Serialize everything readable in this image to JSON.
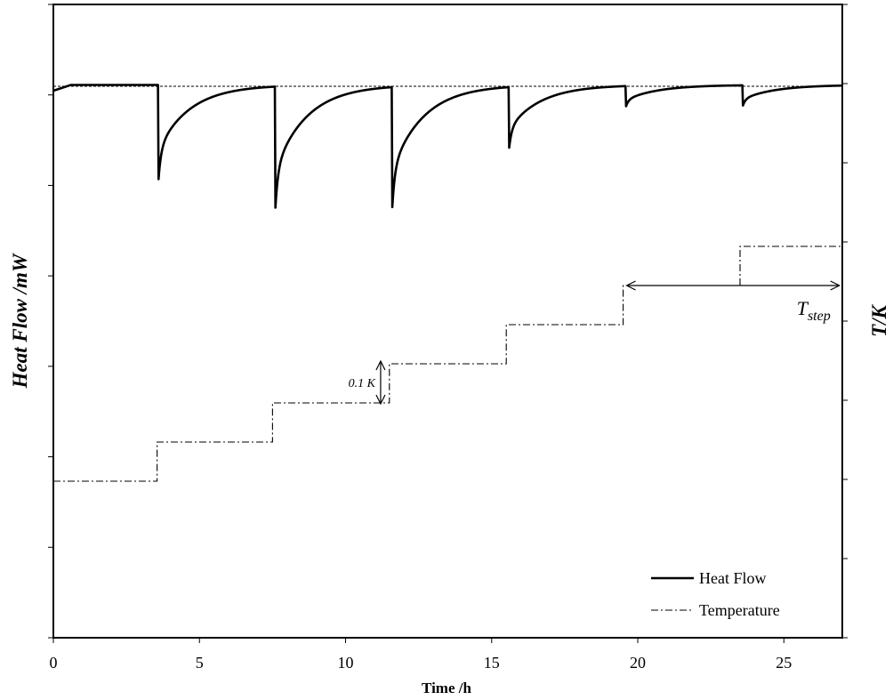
{
  "chart_data": {
    "type": "line",
    "title": "",
    "xlabel": "Time /h",
    "ylabel_left": "Heat Flow /mW",
    "ylabel_right": "T/K",
    "xlim": [
      0,
      27
    ],
    "x_ticks": [
      0,
      5,
      10,
      15,
      20,
      25
    ],
    "left_y_tick_labels_shown": false,
    "right_y_tick_labels_shown": false,
    "baseline_dashed": true,
    "legend": {
      "placement": "bottom-right",
      "entries": [
        "Heat Flow",
        "Temperature"
      ]
    },
    "series": [
      {
        "name": "Heat Flow",
        "style": "solid",
        "description": "baseline with sharp negative peaks at each temperature step",
        "peaks": [
          {
            "x": 3.6,
            "depth": 0.84
          },
          {
            "x": 7.6,
            "depth": 1.08
          },
          {
            "x": 11.6,
            "depth": 1.07
          },
          {
            "x": 15.6,
            "depth": 0.54
          },
          {
            "x": 19.6,
            "depth": 0.18
          },
          {
            "x": 23.6,
            "depth": 0.18
          }
        ]
      },
      {
        "name": "Temperature",
        "style": "dash-dot",
        "description": "staircase, one step of 0.1 K every 4 h",
        "steps": [
          {
            "x_start": 0,
            "x_end": 3.55,
            "level": 0
          },
          {
            "x_start": 3.55,
            "x_end": 7.5,
            "level": 1
          },
          {
            "x_start": 7.5,
            "x_end": 11.5,
            "level": 2
          },
          {
            "x_start": 11.5,
            "x_end": 15.5,
            "level": 3
          },
          {
            "x_start": 15.5,
            "x_end": 19.5,
            "level": 4
          },
          {
            "x_start": 19.5,
            "x_end": 23.5,
            "level": 5
          },
          {
            "x_start": 23.5,
            "x_end": 27,
            "level": 6
          }
        ]
      }
    ],
    "annotations": [
      {
        "text": "0.1 K",
        "type": "vertical-double-arrow",
        "between_steps": [
          2,
          3
        ],
        "at_x": 11.2
      },
      {
        "text": "T",
        "subscript": "step",
        "type": "horizontal-double-arrow",
        "x_from": 19.5,
        "x_to": 26.9,
        "at_level": 5
      }
    ]
  }
}
